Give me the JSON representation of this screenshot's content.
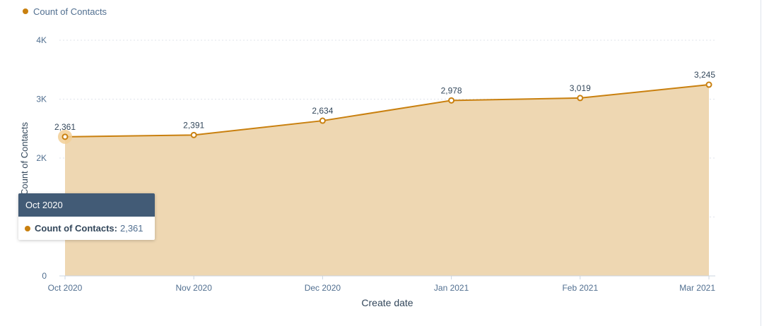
{
  "chart_data": {
    "type": "area",
    "categories": [
      "Oct 2020",
      "Nov 2020",
      "Dec 2020",
      "Jan 2021",
      "Feb 2021",
      "Mar 2021"
    ],
    "series": [
      {
        "name": "Count of Contacts",
        "values": [
          2361,
          2391,
          2634,
          2978,
          3019,
          3245
        ]
      }
    ],
    "data_labels": [
      "2,361",
      "2,391",
      "2,634",
      "2,978",
      "3,019",
      "3,245"
    ],
    "xlabel": "Create date",
    "ylabel": "Count of Contacts",
    "ylim": [
      0,
      4000
    ],
    "yticks": [
      0,
      1000,
      2000,
      3000,
      4000
    ],
    "ytick_labels": [
      "0",
      "",
      "2K",
      "3K",
      "4K"
    ],
    "grid": true,
    "legend_position": "top-left",
    "colors": {
      "line": "#c9800f",
      "fill": "#eed7b2",
      "hover_halo": "#f2cf95"
    }
  },
  "legend": {
    "label": "Count of Contacts"
  },
  "tooltip": {
    "title": "Oct 2020",
    "series_label": "Count of Contacts:",
    "value": "2,361"
  }
}
